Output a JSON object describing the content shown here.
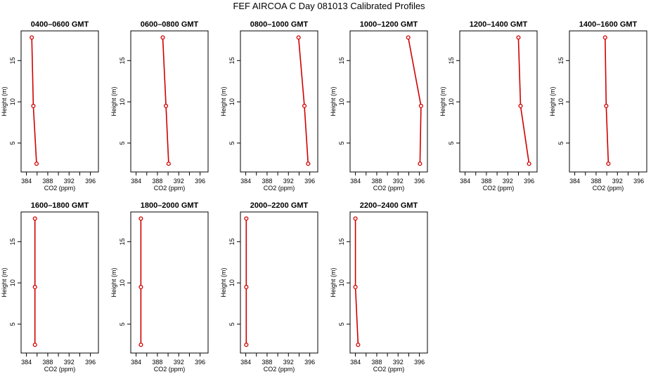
{
  "title": "FEF AIRCOA C  Day 081013  Calibrated Profiles",
  "colors": {
    "profile": "#d00000",
    "axis": "#000000"
  },
  "chart_data": [
    {
      "type": "line",
      "title": "0400–0600 GMT",
      "xlabel": "CO2 (ppm)",
      "ylabel": "Height (m)",
      "xlim": [
        383,
        397.5
      ],
      "ylim": [
        1.5,
        18.6
      ],
      "xticks": [
        "384",
        "388",
        "392",
        "396"
      ],
      "yticks": [
        "5",
        "10",
        "15"
      ],
      "points": [
        {
          "x": 385.0,
          "y": 17.8
        },
        {
          "x": 385.3,
          "y": 9.5
        },
        {
          "x": 385.9,
          "y": 2.5
        }
      ]
    },
    {
      "type": "line",
      "title": "0600–0800 GMT",
      "xlabel": "CO2 (ppm)",
      "ylabel": "Height (m)",
      "xlim": [
        383,
        397.5
      ],
      "ylim": [
        1.5,
        18.6
      ],
      "xticks": [
        "384",
        "388",
        "392",
        "396"
      ],
      "yticks": [
        "5",
        "10",
        "15"
      ],
      "points": [
        {
          "x": 389.0,
          "y": 17.8
        },
        {
          "x": 389.6,
          "y": 9.5
        },
        {
          "x": 390.1,
          "y": 2.5
        }
      ]
    },
    {
      "type": "line",
      "title": "0800–1000 GMT",
      "xlabel": "CO2 (ppm)",
      "ylabel": "Height (m)",
      "xlim": [
        383,
        397.5
      ],
      "ylim": [
        1.5,
        18.6
      ],
      "xticks": [
        "384",
        "388",
        "392",
        "396"
      ],
      "yticks": [
        "5",
        "10",
        "15"
      ],
      "points": [
        {
          "x": 393.9,
          "y": 17.8
        },
        {
          "x": 395.0,
          "y": 9.5
        },
        {
          "x": 395.7,
          "y": 2.5
        }
      ]
    },
    {
      "type": "line",
      "title": "1000–1200 GMT",
      "xlabel": "CO2 (ppm)",
      "ylabel": "Height (m)",
      "xlim": [
        383,
        397.5
      ],
      "ylim": [
        1.5,
        18.6
      ],
      "xticks": [
        "384",
        "388",
        "392",
        "396"
      ],
      "yticks": [
        "5",
        "10",
        "15"
      ],
      "points": [
        {
          "x": 393.9,
          "y": 17.8
        },
        {
          "x": 396.3,
          "y": 9.5
        },
        {
          "x": 396.1,
          "y": 2.5
        }
      ]
    },
    {
      "type": "line",
      "title": "1200–1400 GMT",
      "xlabel": "CO2 (ppm)",
      "ylabel": "Height (m)",
      "xlim": [
        383,
        397.5
      ],
      "ylim": [
        1.5,
        18.6
      ],
      "xticks": [
        "384",
        "388",
        "392",
        "396"
      ],
      "yticks": [
        "5",
        "10",
        "15"
      ],
      "points": [
        {
          "x": 394.0,
          "y": 17.8
        },
        {
          "x": 394.4,
          "y": 9.5
        },
        {
          "x": 396.0,
          "y": 2.5
        }
      ]
    },
    {
      "type": "line",
      "title": "1400–1600 GMT",
      "xlabel": "CO2 (ppm)",
      "ylabel": "Height (m)",
      "xlim": [
        383,
        397.5
      ],
      "ylim": [
        1.5,
        18.6
      ],
      "xticks": [
        "384",
        "388",
        "392",
        "396"
      ],
      "yticks": [
        "5",
        "10",
        "15"
      ],
      "points": [
        {
          "x": 389.7,
          "y": 17.8
        },
        {
          "x": 389.9,
          "y": 9.5
        },
        {
          "x": 390.3,
          "y": 2.5
        }
      ]
    },
    {
      "type": "line",
      "title": "1600–1800 GMT",
      "xlabel": "CO2 (ppm)",
      "ylabel": "Height (m)",
      "xlim": [
        383,
        397.5
      ],
      "ylim": [
        1.5,
        18.6
      ],
      "xticks": [
        "384",
        "388",
        "392",
        "396"
      ],
      "yticks": [
        "5",
        "10",
        "15"
      ],
      "points": [
        {
          "x": 385.6,
          "y": 17.8
        },
        {
          "x": 385.6,
          "y": 9.5
        },
        {
          "x": 385.6,
          "y": 2.5
        }
      ]
    },
    {
      "type": "line",
      "title": "1800–2000 GMT",
      "xlabel": "CO2 (ppm)",
      "ylabel": "Height (m)",
      "xlim": [
        383,
        397.5
      ],
      "ylim": [
        1.5,
        18.6
      ],
      "xticks": [
        "384",
        "388",
        "392",
        "396"
      ],
      "yticks": [
        "5",
        "10",
        "15"
      ],
      "points": [
        {
          "x": 384.9,
          "y": 17.8
        },
        {
          "x": 384.9,
          "y": 9.5
        },
        {
          "x": 384.9,
          "y": 2.5
        }
      ]
    },
    {
      "type": "line",
      "title": "2000–2200 GMT",
      "xlabel": "CO2 (ppm)",
      "ylabel": "Height (m)",
      "xlim": [
        383,
        397.5
      ],
      "ylim": [
        1.5,
        18.6
      ],
      "xticks": [
        "384",
        "388",
        "392",
        "396"
      ],
      "yticks": [
        "5",
        "10",
        "15"
      ],
      "points": [
        {
          "x": 384.1,
          "y": 17.8
        },
        {
          "x": 384.1,
          "y": 9.5
        },
        {
          "x": 384.1,
          "y": 2.5
        }
      ]
    },
    {
      "type": "line",
      "title": "2200–2400 GMT",
      "xlabel": "CO2 (ppm)",
      "ylabel": "Height (m)",
      "xlim": [
        383,
        397.5
      ],
      "ylim": [
        1.5,
        18.6
      ],
      "xticks": [
        "384",
        "388",
        "392",
        "396"
      ],
      "yticks": [
        "5",
        "10",
        "15"
      ],
      "points": [
        {
          "x": 384.0,
          "y": 17.8
        },
        {
          "x": 384.0,
          "y": 9.5
        },
        {
          "x": 384.5,
          "y": 2.5
        }
      ]
    }
  ]
}
